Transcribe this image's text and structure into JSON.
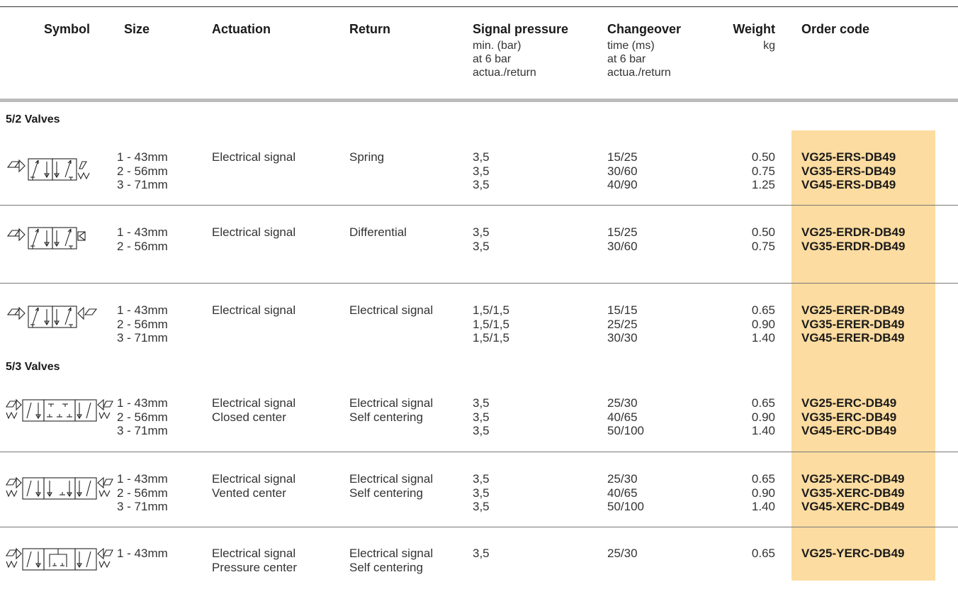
{
  "header": {
    "symbol": "Symbol",
    "size": "Size",
    "actuation": "Actuation",
    "return": "Return",
    "signal_pressure": "Signal pressure",
    "signal_pressure_sub": "min. (bar)\nat 6 bar\nactua./return",
    "changeover": "Changeover",
    "changeover_sub": "time (ms)\nat 6 bar\nactua./return",
    "weight": "Weight",
    "weight_unit": "kg",
    "order_code": "Order code"
  },
  "sections": {
    "s52": "5/2 Valves",
    "s53": "5/3 Valves"
  },
  "rows": [
    {
      "symbol": "5/2 solenoid valve with spring return",
      "size": "1 - 43mm\n2 - 56mm\n3 - 71mm",
      "actuation": "Electrical signal",
      "return": "Spring",
      "pressure": "3,5\n3,5\n3,5",
      "changeover": "15/25\n30/60\n40/90",
      "weight": "0.50\n0.75\n1.25",
      "codes": "VG25-ERS-DB49\nVG35-ERS-DB49\nVG45-ERS-DB49"
    },
    {
      "symbol": "5/2 solenoid valve with differential return",
      "size": "1 - 43mm\n2 - 56mm",
      "actuation": "Electrical signal",
      "return": "Differential",
      "pressure": "3,5\n3,5",
      "changeover": "15/25\n30/60",
      "weight": "0.50\n0.75",
      "codes": "VG25-ERDR-DB49\nVG35-ERDR-DB49"
    },
    {
      "symbol": "5/2 double solenoid valve",
      "size": "1 - 43mm\n2 - 56mm\n3 - 71mm",
      "actuation": "Electrical signal",
      "return": "Electrical signal",
      "pressure": "1,5/1,5\n1,5/1,5\n1,5/1,5",
      "changeover": "15/15\n25/25\n30/30",
      "weight": "0.65\n0.90\n1.40",
      "codes": "VG25-ERER-DB49\nVG35-ERER-DB49\nVG45-ERER-DB49"
    },
    {
      "symbol": "5/3 valve closed center",
      "size": "1 - 43mm\n2 - 56mm\n3 - 71mm",
      "actuation": "Electrical signal\nClosed center",
      "return": "Electrical signal\nSelf centering",
      "pressure": "3,5\n3,5\n3,5",
      "changeover": "25/30\n40/65\n50/100",
      "weight": "0.65\n0.90\n1.40",
      "codes": "VG25-ERC-DB49\nVG35-ERC-DB49\nVG45-ERC-DB49"
    },
    {
      "symbol": "5/3 valve vented center",
      "size": "1 - 43mm\n2 - 56mm\n3 - 71mm",
      "actuation": "Electrical signal\nVented center",
      "return": "Electrical signal\nSelf centering",
      "pressure": "3,5\n3,5\n3,5",
      "changeover": "25/30\n40/65\n50/100",
      "weight": "0.65\n0.90\n1.40",
      "codes": "VG25-XERC-DB49\nVG35-XERC-DB49\nVG45-XERC-DB49"
    },
    {
      "symbol": "5/3 valve pressure center",
      "size": "1 - 43mm",
      "actuation": "Electrical signal\nPressure center",
      "return": "Electrical signal\nSelf centering",
      "pressure": "3,5",
      "changeover": "25/30",
      "weight": "0.65",
      "codes": "VG25-YERC-DB49"
    }
  ]
}
